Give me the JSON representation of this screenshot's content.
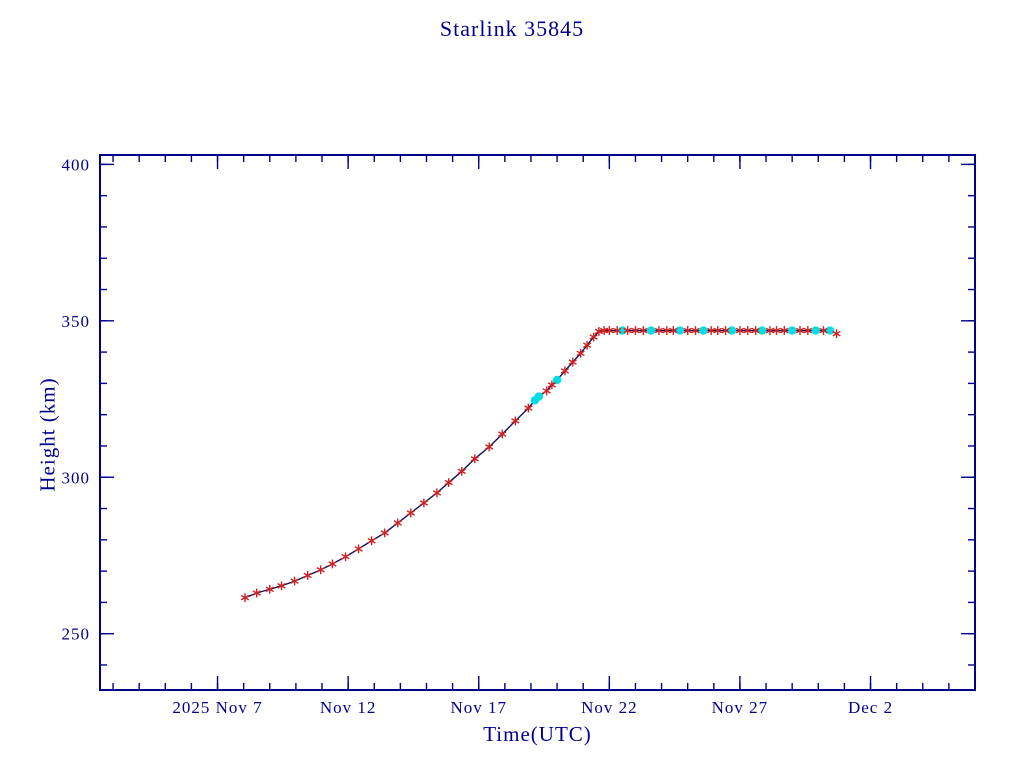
{
  "title": "Starlink 35845",
  "chart_data": {
    "type": "line",
    "title": "Starlink 35845",
    "xlabel": "Time(UTC)",
    "ylabel": "Height (km)",
    "x_unit": "day-of-month offset, 2025 Nov (Dec 2 = 32)",
    "xlim": [
      2.5,
      36
    ],
    "ylim": [
      232,
      403
    ],
    "yticks": [
      250,
      300,
      350,
      400
    ],
    "y_minor_step": 10,
    "x_minor_step": 1,
    "grid": false,
    "legend": null,
    "xticks": [
      {
        "day": 7,
        "label": "2025 Nov 7"
      },
      {
        "day": 12,
        "label": "Nov 12"
      },
      {
        "day": 17,
        "label": "Nov 17"
      },
      {
        "day": 22,
        "label": "Nov 22"
      },
      {
        "day": 27,
        "label": "Nov 27"
      },
      {
        "day": 32,
        "label": "Dec 2"
      }
    ],
    "colors": {
      "axis": "#00008b",
      "text": "#00008b",
      "line": "#12125e",
      "marker_red": "#d02020",
      "marker_cyan": "#00dde6",
      "background": "#ffffff"
    },
    "marker_legend": {
      "r": "red asterisk (tracked point)",
      "c": "cyan dot"
    },
    "points": [
      [
        8.05,
        261.5,
        "r"
      ],
      [
        8.5,
        263.0,
        "r"
      ],
      [
        9.0,
        264.2,
        "r"
      ],
      [
        9.45,
        265.3,
        "r"
      ],
      [
        9.95,
        266.8,
        "r"
      ],
      [
        10.45,
        268.6,
        "r"
      ],
      [
        10.95,
        270.4,
        "r"
      ],
      [
        11.4,
        272.3,
        "r"
      ],
      [
        11.9,
        274.6,
        "r"
      ],
      [
        12.4,
        277.1,
        "r"
      ],
      [
        12.9,
        279.7,
        "r"
      ],
      [
        13.4,
        282.2,
        "r"
      ],
      [
        13.9,
        285.4,
        "r"
      ],
      [
        14.4,
        288.6,
        "r"
      ],
      [
        14.9,
        291.8,
        "r"
      ],
      [
        15.4,
        295.0,
        "r"
      ],
      [
        15.85,
        298.3,
        "r"
      ],
      [
        16.35,
        301.9,
        "r"
      ],
      [
        16.85,
        305.9,
        "r"
      ],
      [
        17.4,
        309.7,
        "r"
      ],
      [
        17.9,
        313.8,
        "r"
      ],
      [
        18.4,
        318.0,
        "r"
      ],
      [
        18.9,
        322.1,
        "r"
      ],
      [
        19.15,
        324.6,
        "c"
      ],
      [
        19.3,
        325.8,
        "c"
      ],
      [
        19.6,
        327.6,
        "r"
      ],
      [
        19.8,
        329.5,
        "r"
      ],
      [
        20.0,
        331.1,
        "c"
      ],
      [
        20.3,
        334.0,
        "r"
      ],
      [
        20.6,
        336.8,
        "r"
      ],
      [
        20.9,
        339.6,
        "r"
      ],
      [
        21.15,
        342.2,
        "r"
      ],
      [
        21.4,
        344.8,
        "r"
      ],
      [
        21.6,
        346.6,
        "r"
      ],
      [
        21.8,
        346.9,
        "r"
      ],
      [
        22.0,
        346.9,
        "r"
      ],
      [
        22.3,
        346.9,
        "r"
      ],
      [
        22.5,
        346.9,
        "c"
      ],
      [
        22.7,
        346.9,
        "r"
      ],
      [
        23.0,
        346.9,
        "r"
      ],
      [
        23.3,
        346.9,
        "r"
      ],
      [
        23.6,
        346.9,
        "c"
      ],
      [
        23.9,
        346.9,
        "r"
      ],
      [
        24.2,
        346.9,
        "r"
      ],
      [
        24.45,
        346.9,
        "r"
      ],
      [
        24.7,
        346.9,
        "c"
      ],
      [
        25.0,
        346.9,
        "r"
      ],
      [
        25.3,
        346.9,
        "r"
      ],
      [
        25.6,
        346.9,
        "c"
      ],
      [
        25.9,
        346.9,
        "r"
      ],
      [
        26.15,
        346.9,
        "r"
      ],
      [
        26.45,
        346.9,
        "r"
      ],
      [
        26.7,
        346.9,
        "c"
      ],
      [
        27.0,
        346.9,
        "r"
      ],
      [
        27.3,
        346.9,
        "r"
      ],
      [
        27.6,
        346.9,
        "r"
      ],
      [
        27.85,
        346.9,
        "c"
      ],
      [
        28.15,
        346.9,
        "r"
      ],
      [
        28.4,
        346.9,
        "r"
      ],
      [
        28.7,
        346.9,
        "r"
      ],
      [
        29.0,
        346.9,
        "c"
      ],
      [
        29.3,
        346.9,
        "r"
      ],
      [
        29.6,
        346.9,
        "r"
      ],
      [
        29.9,
        346.9,
        "c"
      ],
      [
        30.2,
        346.9,
        "r"
      ],
      [
        30.45,
        346.9,
        "c"
      ],
      [
        30.7,
        345.9,
        "r"
      ]
    ]
  }
}
